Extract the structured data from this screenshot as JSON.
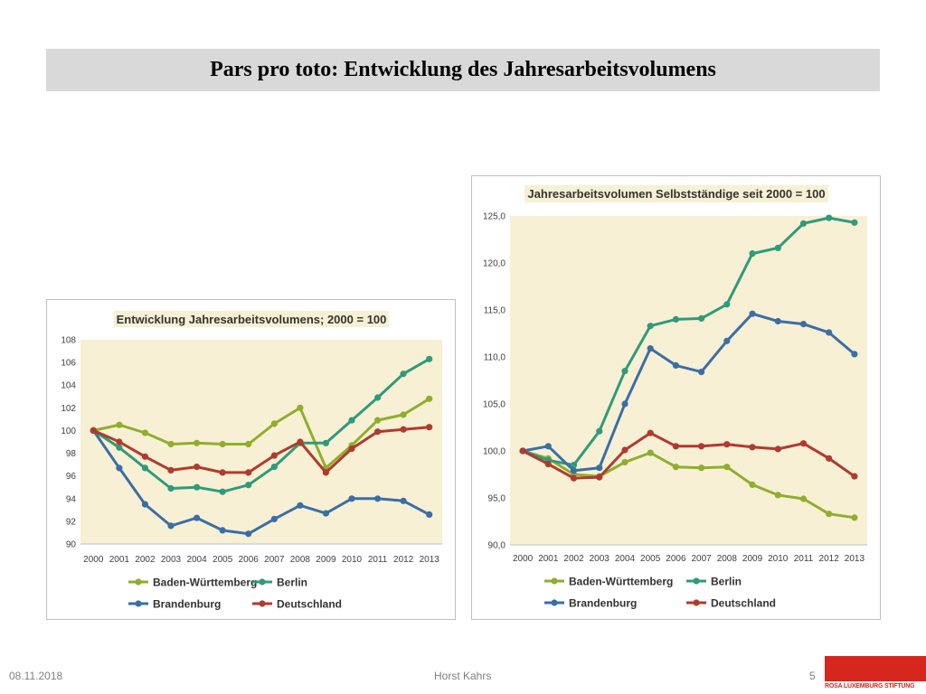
{
  "slide": {
    "title": "Pars pro toto: Entwicklung des Jahresarbeitsvolumens",
    "footer_date": "08.11.2018",
    "footer_author": "Horst Kahrs",
    "page_number": "5",
    "logo_text": "ROSA LUXEMBURG STIFTUNG",
    "logo_color": "#d7261e"
  },
  "chart_data": [
    {
      "type": "line",
      "title": "Entwicklung Jahresarbeitsvolumens; 2000 = 100",
      "x": [
        "2000",
        "2001",
        "2002",
        "2003",
        "2004",
        "2005",
        "2006",
        "2007",
        "2008",
        "2009",
        "2010",
        "2011",
        "2012",
        "2013"
      ],
      "ylim": [
        90,
        108
      ],
      "yticks": [
        90,
        92,
        94,
        96,
        98,
        100,
        102,
        104,
        106,
        108
      ],
      "ytick_labels": [
        "90",
        "92",
        "94",
        "96",
        "98",
        "100",
        "102",
        "104",
        "106",
        "108"
      ],
      "grid": false,
      "plot_background": "#f8f0d4",
      "legend_placement": "bottom",
      "series": [
        {
          "name": "Baden-Württemberg",
          "color": "#8fae2e",
          "values": [
            100.0,
            100.5,
            99.8,
            98.8,
            98.9,
            98.8,
            98.8,
            100.6,
            102.0,
            96.7,
            98.7,
            100.9,
            101.4,
            102.8
          ]
        },
        {
          "name": "Berlin",
          "color": "#2e9b7a",
          "values": [
            100.0,
            98.5,
            96.7,
            94.9,
            95.0,
            94.6,
            95.2,
            96.8,
            98.9,
            98.9,
            100.9,
            102.9,
            105.0,
            106.3
          ]
        },
        {
          "name": "Brandenburg",
          "color": "#3b6ea5",
          "values": [
            100.0,
            96.7,
            93.5,
            91.6,
            92.3,
            91.2,
            90.9,
            92.2,
            93.4,
            92.7,
            94.0,
            94.0,
            93.8,
            92.6
          ]
        },
        {
          "name": "Deutschland",
          "color": "#b03a2e",
          "values": [
            100.0,
            99.0,
            97.7,
            96.5,
            96.8,
            96.3,
            96.3,
            97.8,
            99.0,
            96.3,
            98.4,
            99.9,
            100.1,
            100.3
          ]
        }
      ]
    },
    {
      "type": "line",
      "title": "Jahresarbeitsvolumen Selbstständige seit 2000 = 100",
      "x": [
        "2000",
        "2001",
        "2002",
        "2003",
        "2004",
        "2005",
        "2006",
        "2007",
        "2008",
        "2009",
        "2010",
        "2011",
        "2012",
        "2013"
      ],
      "ylim": [
        90,
        125
      ],
      "yticks": [
        90,
        95,
        100,
        105,
        110,
        115,
        120,
        125
      ],
      "ytick_labels": [
        "90,0",
        "95,0",
        "100,0",
        "105,0",
        "110,0",
        "115,0",
        "120,0",
        "125,0"
      ],
      "grid": false,
      "plot_background": "#f8f0d4",
      "legend_placement": "bottom",
      "series": [
        {
          "name": "Baden-Württemberg",
          "color": "#8fae2e",
          "values": [
            100.0,
            99.2,
            97.5,
            97.3,
            98.8,
            99.8,
            98.3,
            98.2,
            98.3,
            96.4,
            95.3,
            94.9,
            93.3,
            92.9
          ]
        },
        {
          "name": "Berlin",
          "color": "#2e9b7a",
          "values": [
            100.0,
            99.0,
            98.5,
            102.1,
            108.5,
            113.3,
            114.0,
            114.1,
            115.6,
            121.0,
            121.6,
            124.2,
            124.8,
            124.3
          ]
        },
        {
          "name": "Brandenburg",
          "color": "#3b6ea5",
          "values": [
            100.0,
            100.5,
            97.9,
            98.2,
            105.0,
            110.9,
            109.1,
            108.4,
            111.7,
            114.6,
            113.8,
            113.5,
            112.6,
            110.3
          ]
        },
        {
          "name": "Deutschland",
          "color": "#b03a2e",
          "values": [
            100.0,
            98.6,
            97.1,
            97.2,
            100.1,
            101.9,
            100.5,
            100.5,
            100.7,
            100.4,
            100.2,
            100.8,
            99.2,
            97.3
          ]
        }
      ]
    }
  ]
}
